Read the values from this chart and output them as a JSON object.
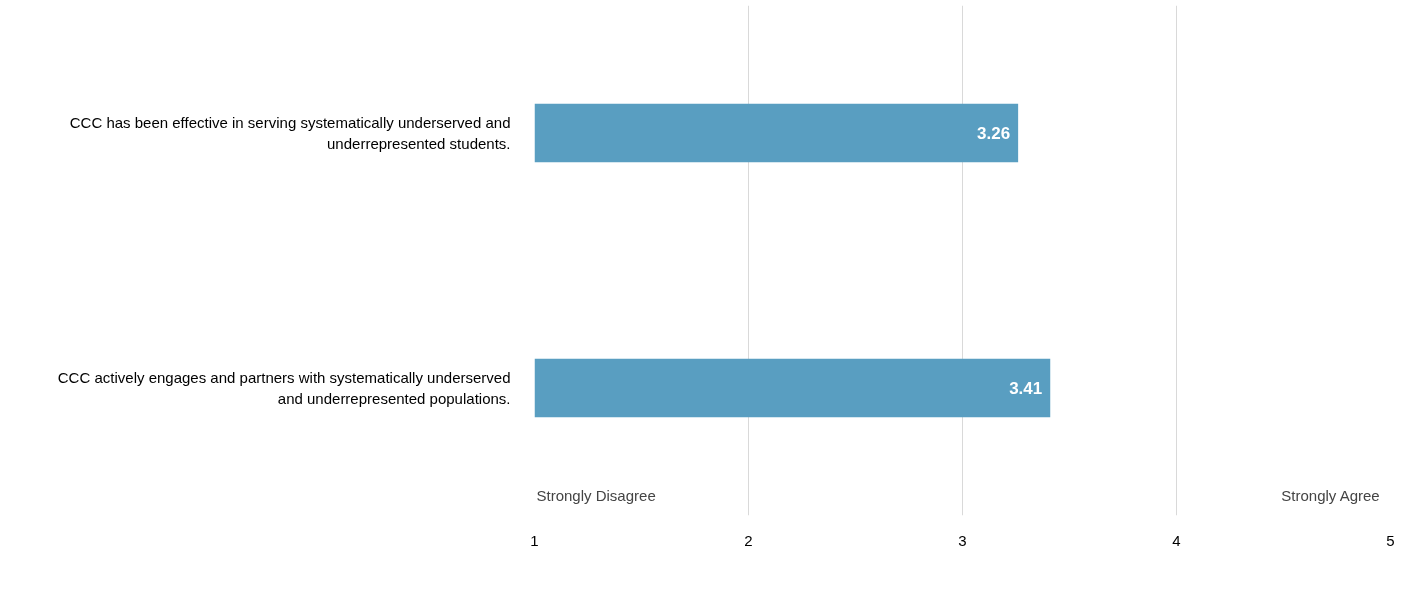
{
  "chart_data": {
    "type": "bar",
    "orientation": "horizontal",
    "categories": [
      "CCC has been effective in serving systematically underserved and\nunderrepresented students.",
      "CCC actively engages and partners with systematically underserved\nand underrepresented populations."
    ],
    "values": [
      3.26,
      3.41
    ],
    "color": "#599ec1",
    "data_labels": true,
    "xlim": [
      1,
      5
    ],
    "xticks": [
      1,
      2,
      3,
      4,
      5
    ],
    "grid": "x",
    "annotations": [
      "Strongly Disagree",
      "Strongly Agree"
    ]
  }
}
